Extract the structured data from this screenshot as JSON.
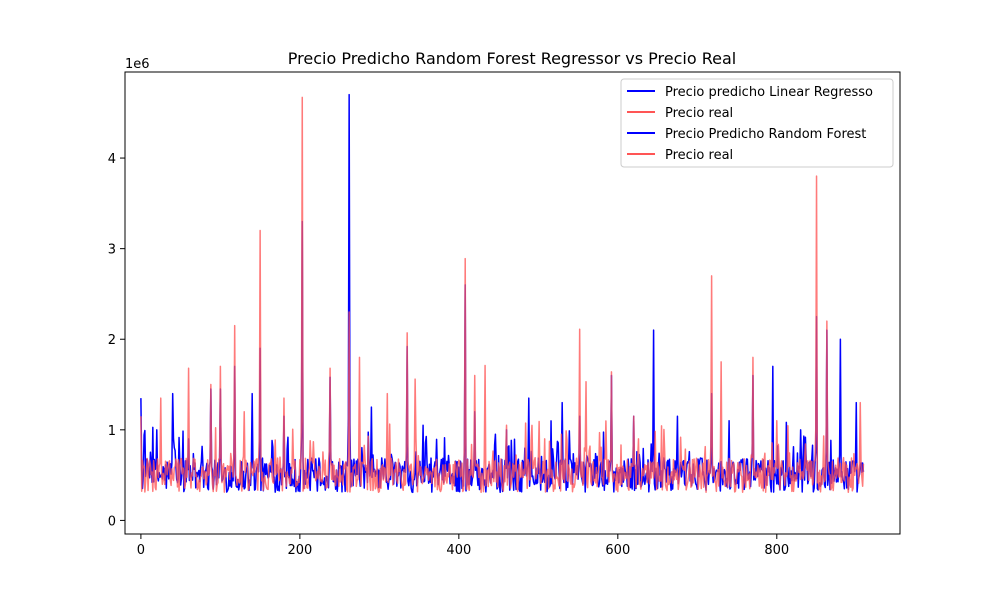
{
  "chart_data": {
    "type": "line",
    "title": "Precio Predicho Random Forest Regressor vs Precio Real",
    "xlabel": "",
    "ylabel": "",
    "offset_label": "1e6",
    "xlim": [
      -20,
      955
    ],
    "ylim": [
      -150000,
      4950000
    ],
    "xticks": [
      0,
      200,
      400,
      600,
      800
    ],
    "xtick_labels": [
      "0",
      "200",
      "400",
      "600",
      "800"
    ],
    "yticks": [
      0,
      1000000,
      2000000,
      3000000,
      4000000
    ],
    "ytick_labels": [
      "0",
      "1",
      "2",
      "3",
      "4"
    ],
    "n_points": 910,
    "legend": {
      "placement": "upper right",
      "entries": [
        {
          "label": "Precio predicho Linear Regresso",
          "color": "#0000ff"
        },
        {
          "label": "Precio real",
          "color": "#ff5555"
        },
        {
          "label": "Precio Predicho Random Forest",
          "color": "#0000ff"
        },
        {
          "label": "Precio real",
          "color": "#ff5555"
        }
      ]
    },
    "series": [
      {
        "name": "Precio Predicho Random Forest",
        "color": "#0000ff",
        "baseline": 500000,
        "peaks": [
          [
            0,
            1350000
          ],
          [
            20,
            1000000
          ],
          [
            40,
            1400000
          ],
          [
            60,
            900000
          ],
          [
            88,
            1450000
          ],
          [
            100,
            1450000
          ],
          [
            118,
            1700000
          ],
          [
            140,
            1400000
          ],
          [
            150,
            1900000
          ],
          [
            180,
            1150000
          ],
          [
            203,
            3300000
          ],
          [
            238,
            1580000
          ],
          [
            262,
            4700000
          ],
          [
            290,
            1250000
          ],
          [
            335,
            1920000
          ],
          [
            355,
            1050000
          ],
          [
            408,
            2600000
          ],
          [
            420,
            1200000
          ],
          [
            460,
            1000000
          ],
          [
            488,
            1350000
          ],
          [
            530,
            1300000
          ],
          [
            552,
            1150000
          ],
          [
            592,
            1600000
          ],
          [
            620,
            1150000
          ],
          [
            645,
            2100000
          ],
          [
            675,
            1150000
          ],
          [
            718,
            1400000
          ],
          [
            740,
            1100000
          ],
          [
            770,
            1600000
          ],
          [
            795,
            1700000
          ],
          [
            830,
            1000000
          ],
          [
            850,
            2250000
          ],
          [
            863,
            2100000
          ],
          [
            880,
            2000000
          ],
          [
            900,
            1300000
          ]
        ]
      },
      {
        "name": "Precio real",
        "color": "#ff5555",
        "baseline": 500000,
        "peaks": [
          [
            0,
            1150000
          ],
          [
            25,
            1350000
          ],
          [
            60,
            1680000
          ],
          [
            88,
            1500000
          ],
          [
            100,
            1700000
          ],
          [
            118,
            2150000
          ],
          [
            130,
            1200000
          ],
          [
            150,
            3200000
          ],
          [
            180,
            1350000
          ],
          [
            203,
            4670000
          ],
          [
            238,
            1680000
          ],
          [
            262,
            2300000
          ],
          [
            275,
            1800000
          ],
          [
            310,
            1400000
          ],
          [
            335,
            2070000
          ],
          [
            345,
            1560000
          ],
          [
            408,
            2890000
          ],
          [
            420,
            1600000
          ],
          [
            433,
            1710000
          ],
          [
            460,
            1050000
          ],
          [
            552,
            2110000
          ],
          [
            560,
            1530000
          ],
          [
            592,
            1640000
          ],
          [
            620,
            1150000
          ],
          [
            718,
            2700000
          ],
          [
            730,
            1750000
          ],
          [
            770,
            1800000
          ],
          [
            800,
            1100000
          ],
          [
            850,
            3800000
          ],
          [
            863,
            2200000
          ],
          [
            905,
            1300000
          ]
        ]
      }
    ]
  }
}
